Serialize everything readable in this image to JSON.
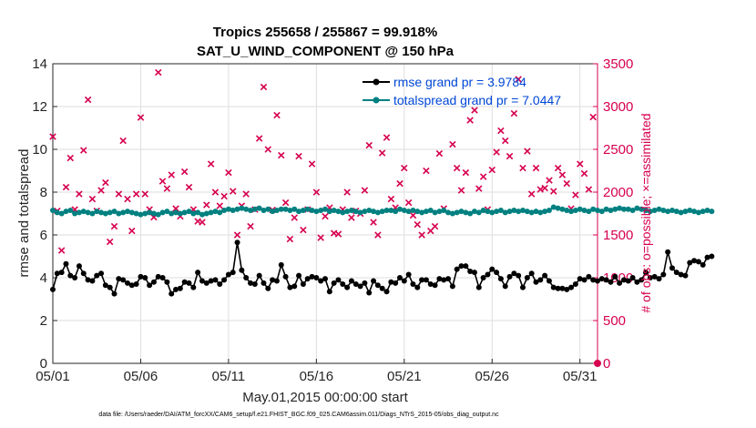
{
  "chart_data": {
    "type": "line",
    "title": "Tropics 255658 / 255867 = 99.918%",
    "subtitle": "SAT_U_WIND_COMPONENT @ 150 hPa",
    "xlabel": "May.01,2015 00:00:00 start",
    "ylabel": "rmse and totalspread",
    "y2label": "# of obs: o=possible; ×=assimilated",
    "footnote": "data file: /Users/raeder/DAI/ATM_forcXX/CAM6_setup/f.e21.FHIST_BGC.f09_025.CAM6assim.011/Diags_NTrS_2015-05/obs_diag_output.nc",
    "xlim": [
      1,
      32
    ],
    "ylim": [
      0,
      14
    ],
    "y2lim": [
      0,
      3500
    ],
    "xticks": [
      {
        "x": 1,
        "label": "05/01"
      },
      {
        "x": 6,
        "label": "05/06"
      },
      {
        "x": 11,
        "label": "05/11"
      },
      {
        "x": 16,
        "label": "05/16"
      },
      {
        "x": 21,
        "label": "05/21"
      },
      {
        "x": 26,
        "label": "05/26"
      },
      {
        "x": 31,
        "label": "05/31"
      }
    ],
    "yticks": [
      "0",
      "2",
      "4",
      "6",
      "8",
      "10",
      "12",
      "14"
    ],
    "y2ticks": [
      "0",
      "500",
      "1000",
      "1500",
      "2000",
      "2500",
      "3000",
      "3500"
    ],
    "legend_position": "top-right",
    "colors": {
      "rmse": "#000000",
      "spread": "#008080",
      "obs": "#d6004f",
      "legend_text": "#0047d6",
      "grid": "#dedede"
    },
    "x_start": 1,
    "x_step": 0.25,
    "series": [
      {
        "name": "rmse grand pr = 3.9784",
        "label": "rmse grand pr = 3.9784",
        "color": "#000000",
        "marker": "o",
        "values": [
          3.45,
          4.2,
          4.25,
          4.65,
          4.1,
          4.0,
          4.55,
          4.2,
          3.9,
          3.85,
          4.1,
          4.2,
          3.65,
          3.55,
          3.25,
          3.95,
          3.9,
          3.75,
          3.65,
          3.7,
          4.05,
          4.0,
          3.65,
          3.8,
          4.05,
          4.0,
          3.8,
          3.25,
          3.45,
          3.5,
          3.8,
          3.75,
          3.55,
          4.25,
          3.85,
          3.75,
          3.85,
          3.9,
          3.7,
          3.9,
          4.15,
          4.25,
          5.65,
          4.35,
          4.0,
          3.75,
          3.7,
          4.1,
          3.75,
          3.5,
          3.9,
          3.85,
          4.6,
          4.05,
          3.55,
          3.6,
          4.1,
          3.7,
          3.95,
          4.05,
          4.0,
          3.85,
          3.95,
          3.35,
          3.75,
          3.9,
          3.7,
          3.55,
          3.85,
          3.7,
          3.6,
          3.75,
          3.3,
          3.85,
          3.65,
          3.5,
          3.35,
          3.8,
          3.75,
          4.0,
          3.85,
          4.15,
          3.7,
          3.55,
          3.9,
          3.9,
          3.7,
          3.65,
          3.95,
          3.9,
          3.95,
          3.6,
          4.4,
          4.55,
          4.55,
          4.3,
          4.25,
          3.55,
          4.0,
          4.15,
          4.4,
          4.25,
          3.95,
          3.6,
          4.05,
          4.2,
          4.1,
          3.55,
          4.0,
          4.2,
          3.8,
          3.9,
          4.1,
          3.85,
          3.55,
          3.5,
          3.5,
          3.45,
          3.55,
          3.7,
          3.95,
          3.9,
          4.05,
          3.9,
          3.85,
          3.95,
          3.9,
          3.8,
          4.05,
          3.75,
          3.9,
          3.85,
          4.0,
          3.8,
          3.9,
          4.25,
          4.0,
          4.05,
          3.95,
          4.15,
          5.2,
          4.45,
          4.25,
          4.15,
          4.1,
          4.7,
          4.8,
          4.75,
          4.6,
          4.95,
          5.0
        ]
      },
      {
        "name": "totalspread grand pr = 7.0447",
        "label": "totalspread grand pr = 7.0447",
        "color": "#008080",
        "marker": "o",
        "values": [
          7.15,
          7.05,
          7.0,
          7.1,
          7.15,
          7.0,
          7.05,
          7.1,
          7.05,
          7.0,
          7.1,
          7.05,
          7.0,
          7.05,
          7.1,
          7.0,
          7.05,
          7.1,
          7.05,
          7.0,
          6.95,
          7.0,
          7.05,
          7.0,
          6.95,
          7.05,
          7.1,
          7.0,
          7.05,
          7.0,
          7.05,
          7.1,
          7.0,
          7.05,
          6.95,
          7.0,
          7.05,
          7.1,
          7.05,
          7.15,
          7.2,
          7.15,
          7.2,
          7.25,
          7.2,
          7.15,
          7.2,
          7.25,
          7.15,
          7.2,
          7.1,
          7.15,
          7.2,
          7.2,
          7.15,
          7.2,
          7.1,
          7.15,
          7.2,
          7.15,
          7.1,
          7.15,
          7.2,
          7.1,
          7.15,
          7.1,
          7.05,
          7.1,
          7.15,
          7.1,
          7.05,
          7.1,
          7.15,
          7.1,
          7.05,
          7.1,
          7.15,
          7.15,
          7.1,
          7.2,
          7.15,
          7.1,
          7.15,
          7.1,
          7.05,
          7.1,
          7.15,
          7.05,
          7.1,
          7.15,
          7.05,
          7.0,
          7.05,
          7.1,
          7.05,
          7.0,
          7.1,
          7.05,
          7.15,
          7.1,
          7.05,
          7.1,
          7.15,
          7.05,
          7.1,
          7.15,
          7.1,
          7.15,
          7.1,
          7.05,
          7.1,
          7.05,
          7.1,
          7.15,
          7.3,
          7.25,
          7.2,
          7.15,
          7.1,
          7.15,
          7.2,
          7.15,
          7.1,
          7.2,
          7.15,
          7.1,
          7.2,
          7.15,
          7.2,
          7.25,
          7.2,
          7.2,
          7.15,
          7.25,
          7.2,
          7.15,
          7.1,
          7.15,
          7.2,
          7.15,
          7.1,
          7.15,
          7.1,
          7.05,
          7.1,
          7.15,
          7.1,
          7.05,
          7.1,
          7.15,
          7.1
        ]
      }
    ],
    "obs_assimilated": {
      "name": "# of obs assimilated",
      "marker": "×",
      "color": "#d6004f",
      "points": [
        [
          1.0,
          2650
        ],
        [
          1.25,
          1780
        ],
        [
          1.5,
          1320
        ],
        [
          1.75,
          2060
        ],
        [
          2.0,
          2400
        ],
        [
          2.25,
          1800
        ],
        [
          2.5,
          1980
        ],
        [
          2.75,
          2490
        ],
        [
          3.0,
          3080
        ],
        [
          3.25,
          1920
        ],
        [
          3.5,
          1780
        ],
        [
          3.75,
          2020
        ],
        [
          4.0,
          2110
        ],
        [
          4.25,
          1420
        ],
        [
          4.5,
          1600
        ],
        [
          4.75,
          1980
        ],
        [
          5.0,
          2600
        ],
        [
          5.25,
          1920
        ],
        [
          5.5,
          1550
        ],
        [
          5.75,
          1980
        ],
        [
          6.0,
          2870
        ],
        [
          6.25,
          1980
        ],
        [
          6.5,
          1800
        ],
        [
          6.75,
          1710
        ],
        [
          7.0,
          3400
        ],
        [
          7.25,
          2130
        ],
        [
          7.5,
          2040
        ],
        [
          7.75,
          2200
        ],
        [
          8.0,
          1810
        ],
        [
          8.25,
          1720
        ],
        [
          8.5,
          2240
        ],
        [
          8.75,
          2060
        ],
        [
          9.0,
          1800
        ],
        [
          9.25,
          1660
        ],
        [
          9.5,
          1650
        ],
        [
          9.75,
          1850
        ],
        [
          10.0,
          2330
        ],
        [
          10.25,
          2000
        ],
        [
          10.5,
          1840
        ],
        [
          10.75,
          1950
        ],
        [
          11.0,
          2230
        ],
        [
          11.25,
          2010
        ],
        [
          11.5,
          1500
        ],
        [
          11.75,
          1840
        ],
        [
          12.0,
          1980
        ],
        [
          12.25,
          1600
        ],
        [
          12.5,
          1800
        ],
        [
          12.75,
          2630
        ],
        [
          13.0,
          3230
        ],
        [
          13.25,
          2500
        ],
        [
          13.5,
          1790
        ],
        [
          13.75,
          2900
        ],
        [
          14.0,
          2430
        ],
        [
          14.25,
          1880
        ],
        [
          14.5,
          1450
        ],
        [
          14.75,
          1700
        ],
        [
          15.0,
          2420
        ],
        [
          15.25,
          1560
        ],
        [
          15.5,
          1800
        ],
        [
          15.75,
          2330
        ],
        [
          16.0,
          2000
        ],
        [
          16.25,
          1470
        ],
        [
          16.5,
          1720
        ],
        [
          16.75,
          1820
        ],
        [
          17.0,
          1520
        ],
        [
          17.25,
          1510
        ],
        [
          17.5,
          1800
        ],
        [
          17.75,
          2000
        ],
        [
          18.0,
          1700
        ],
        [
          18.25,
          1780
        ],
        [
          18.5,
          1750
        ],
        [
          18.75,
          2020
        ],
        [
          19.0,
          2550
        ],
        [
          19.25,
          1650
        ],
        [
          19.5,
          1500
        ],
        [
          19.75,
          2460
        ],
        [
          20.0,
          2640
        ],
        [
          20.25,
          1920
        ],
        [
          20.5,
          1820
        ],
        [
          20.75,
          2100
        ],
        [
          21.0,
          2280
        ],
        [
          21.25,
          1880
        ],
        [
          21.5,
          1730
        ],
        [
          21.75,
          1620
        ],
        [
          22.0,
          1500
        ],
        [
          22.25,
          2250
        ],
        [
          22.5,
          1550
        ],
        [
          22.75,
          1600
        ],
        [
          23.0,
          2450
        ],
        [
          23.25,
          1810
        ],
        [
          23.75,
          2560
        ],
        [
          24.0,
          2280
        ],
        [
          24.25,
          2020
        ],
        [
          24.5,
          2230
        ],
        [
          24.75,
          2840
        ],
        [
          25.0,
          2960
        ],
        [
          25.25,
          2040
        ],
        [
          25.5,
          2180
        ],
        [
          25.75,
          1800
        ],
        [
          26.0,
          2260
        ],
        [
          26.25,
          2470
        ],
        [
          26.5,
          2720
        ],
        [
          26.75,
          2600
        ],
        [
          27.0,
          2420
        ],
        [
          27.25,
          2920
        ],
        [
          27.5,
          3320
        ],
        [
          27.75,
          2280
        ],
        [
          28.0,
          2480
        ],
        [
          28.25,
          1980
        ],
        [
          28.5,
          2280
        ],
        [
          28.75,
          2030
        ],
        [
          29.0,
          2050
        ],
        [
          29.25,
          2140
        ],
        [
          29.5,
          2010
        ],
        [
          29.75,
          2280
        ],
        [
          30.0,
          2200
        ],
        [
          30.25,
          2100
        ],
        [
          30.5,
          1810
        ],
        [
          30.75,
          1970
        ],
        [
          31.0,
          2330
        ],
        [
          31.25,
          2220
        ],
        [
          31.5,
          2030
        ],
        [
          31.75,
          2880
        ]
      ]
    },
    "obs_possible": {
      "name": "# of obs possible",
      "marker": "o",
      "color": "#d6004f",
      "points": [
        [
          32.0,
          0
        ]
      ]
    }
  }
}
